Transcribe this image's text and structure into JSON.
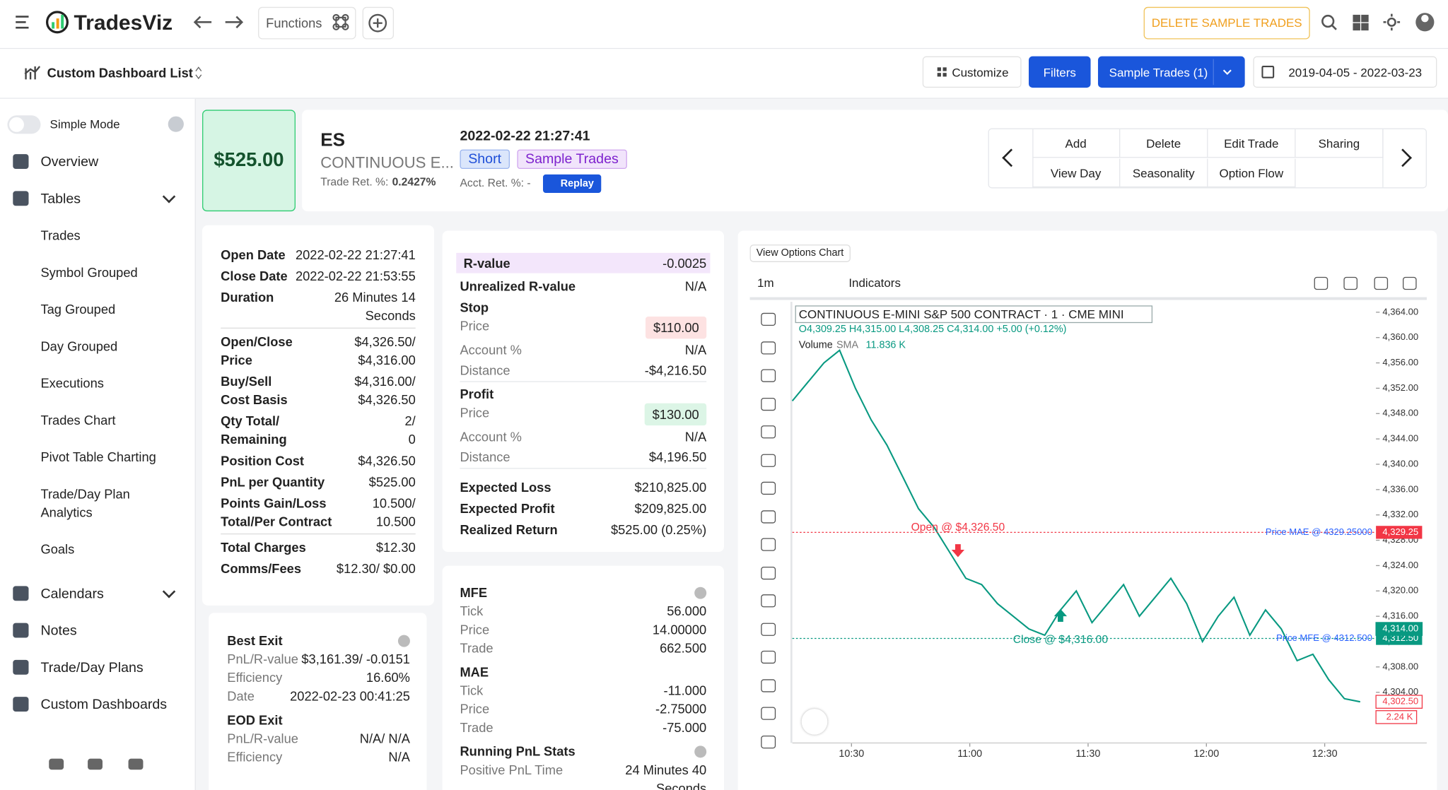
{
  "header": {
    "brand": "TradesViz",
    "functions": "Functions",
    "delete_sample": "DELETE SAMPLE TRADES"
  },
  "toolbar": {
    "dashboard": "Custom Dashboard List",
    "customize": "Customize",
    "filters": "Filters",
    "sample_trades": "Sample Trades (1)",
    "date_range": "2019-04-05 - 2022-03-23"
  },
  "sidebar": {
    "simple_mode": "Simple Mode",
    "sections": [
      {
        "label": "Overview"
      },
      {
        "label": "Tables",
        "children": [
          "Trades",
          "Symbol Grouped",
          "Tag Grouped",
          "Day Grouped",
          "Executions",
          "Trades Chart",
          "Pivot Table Charting",
          "Trade/Day Plan Analytics",
          "Goals"
        ]
      },
      {
        "label": "Calendars",
        "children": []
      },
      {
        "label": "Notes"
      },
      {
        "label": "Trade/Day Plans"
      },
      {
        "label": "Custom Dashboards"
      }
    ]
  },
  "trade": {
    "pnl": "$525.00",
    "symbol": "ES",
    "name": "CONTINUOUS E...",
    "trade_ret_label": "Trade Ret. %:",
    "trade_ret": "0.2427%",
    "datetime": "2022-02-22 21:27:41",
    "tags": [
      "Short",
      "Sample Trades"
    ],
    "acct_ret": "Acct. Ret. %: -",
    "replay": "Replay",
    "actions": [
      [
        "Add",
        "Delete",
        "Edit Trade",
        "Sharing"
      ],
      [
        "View Day",
        "Seasonality",
        "Option Flow"
      ]
    ]
  },
  "details": {
    "groups": [
      [
        {
          "label": "Open Date",
          "value": "2022-02-22 21:27:41"
        },
        {
          "label": "Close Date",
          "value": "2022-02-22 21:53:55"
        },
        {
          "label": "Duration",
          "value": [
            "26 Minutes 14",
            "Seconds"
          ]
        }
      ],
      [
        {
          "label": [
            "Open/Close",
            "Price"
          ],
          "value": [
            "$4,326.50/",
            "$4,316.00"
          ]
        },
        {
          "label": [
            "Buy/Sell",
            "Cost Basis"
          ],
          "value": [
            "$4,316.00/",
            "$4,326.50"
          ]
        },
        {
          "label": [
            "Qty Total/",
            "Remaining"
          ],
          "value": [
            "2/",
            "0"
          ]
        },
        {
          "label": "Position Cost",
          "value": "$4,326.50"
        },
        {
          "label": "PnL per Quantity",
          "value": "$525.00"
        },
        {
          "label": [
            "Points Gain/Loss",
            "Total/Per Contract"
          ],
          "value": [
            "10.500/",
            "10.500"
          ]
        }
      ],
      [
        {
          "label": "Total Charges",
          "value": "$12.30"
        },
        {
          "label": "Comms/Fees",
          "value": "$12.30/ $0.00"
        }
      ]
    ]
  },
  "exit": {
    "sections": [
      {
        "title": "Best Exit",
        "rows": [
          {
            "label": "PnL/R-value",
            "value": "$3,161.39/ -0.0151"
          },
          {
            "label": "Efficiency",
            "value": "16.60%"
          },
          {
            "label": "Date",
            "value": "2022-02-23 00:41:25"
          }
        ]
      },
      {
        "title": "EOD Exit",
        "rows": [
          {
            "label": "PnL/R-value",
            "value": "N/A/ N/A"
          },
          {
            "label": "Efficiency",
            "value": "N/A"
          }
        ]
      }
    ]
  },
  "risk": {
    "items": [
      {
        "label": "R-value",
        "value": "-0.0025"
      },
      {
        "label": "Unrealized R-value",
        "value": "N/A"
      },
      {
        "title": "Stop",
        "rows": [
          {
            "label": "Price",
            "value": "$110.00"
          },
          {
            "label": "Account %",
            "value": "N/A"
          },
          {
            "label": "Distance",
            "value": "-$4,216.50"
          }
        ]
      },
      {
        "title": "Profit",
        "rows": [
          {
            "label": "Price",
            "value": "$130.00"
          },
          {
            "label": "Account %",
            "value": "N/A"
          },
          {
            "label": "Distance",
            "value": "$4,196.50"
          }
        ]
      },
      {
        "label": "Expected Loss",
        "value": "$210,825.00"
      },
      {
        "label": "Expected Profit",
        "value": "$209,825.00"
      },
      {
        "label": "Realized Return",
        "value": "$525.00  (0.25%)"
      }
    ]
  },
  "excursion": {
    "sections": [
      {
        "title": "MFE",
        "rows": [
          {
            "label": "Tick",
            "value": "56.000"
          },
          {
            "label": "Price",
            "value": "14.00000"
          },
          {
            "label": "Trade",
            "value": "662.500"
          }
        ]
      },
      {
        "title": "MAE",
        "rows": [
          {
            "label": "Tick",
            "value": "-11.000"
          },
          {
            "label": "Price",
            "value": "-2.75000"
          },
          {
            "label": "Trade",
            "value": "-75.000"
          }
        ]
      },
      {
        "title": "Running PnL Stats",
        "rows": [
          {
            "label": "Positive PnL Time",
            "value": [
              "24 Minutes 40",
              "Seconds"
            ]
          }
        ]
      }
    ]
  },
  "chart_data": {
    "type": "line",
    "title": "CONTINUOUS E-MINI S&P 500 CONTRACT · 1 · CME MINI",
    "ohlc": "O4,309.25 H4,315.00 L4,308.25 C4,314.00 +5.00 (+0.12%)",
    "volume_label": "Volume",
    "volume_sma": "SMA",
    "volume_value": "11.836 K",
    "interval": "1m",
    "indicators": "Indicators",
    "view_options": "View Options Chart",
    "color": "#089981",
    "x": [
      615,
      619,
      623,
      627,
      631,
      635,
      639,
      643,
      647,
      651,
      655,
      659,
      663,
      667,
      671,
      675,
      679,
      683,
      687,
      691,
      695,
      699,
      703,
      707,
      711,
      715,
      719,
      723,
      727,
      731,
      735,
      739,
      743,
      747,
      751,
      755,
      759
    ],
    "values": [
      4350,
      4353,
      4356,
      4358,
      4352,
      4347,
      4343,
      4338,
      4333,
      4330,
      4326,
      4322,
      4321,
      4318,
      4316,
      4314,
      4313,
      4317,
      4320,
      4315,
      4318,
      4321,
      4316,
      4319,
      4322,
      4318,
      4312,
      4316,
      4319,
      4313,
      4317,
      4314,
      4309,
      4310,
      4306,
      4303,
      4302.5
    ],
    "xlim": [
      615,
      763
    ],
    "ylim": [
      4296,
      4365.5
    ],
    "xticks": [
      {
        "value": 630,
        "label": "10:30"
      },
      {
        "value": 660,
        "label": "11:00"
      },
      {
        "value": 690,
        "label": "11:30"
      },
      {
        "value": 720,
        "label": "12:00"
      },
      {
        "value": 750,
        "label": "12:30"
      }
    ],
    "yticks": [
      {
        "value": 4364,
        "label": "4,364.00"
      },
      {
        "value": 4360,
        "label": "4,360.00"
      },
      {
        "value": 4356,
        "label": "4,356.00"
      },
      {
        "value": 4352,
        "label": "4,352.00"
      },
      {
        "value": 4348,
        "label": "4,348.00"
      },
      {
        "value": 4344,
        "label": "4,344.00"
      },
      {
        "value": 4340,
        "label": "4,340.00"
      },
      {
        "value": 4336,
        "label": "4,336.00"
      },
      {
        "value": 4332,
        "label": "4,332.00"
      },
      {
        "value": 4328,
        "label": "4,328.00"
      },
      {
        "value": 4324,
        "label": "4,324.00"
      },
      {
        "value": 4320,
        "label": "4,320.00"
      },
      {
        "value": 4316,
        "label": "4,316.00"
      },
      {
        "value": 4312,
        "label": "4,312.00"
      },
      {
        "value": 4308,
        "label": "4,308.00"
      },
      {
        "value": 4304,
        "label": "4,304.00"
      }
    ],
    "price_lines": [
      {
        "label": "Price MAE @ 4329.25000",
        "value": 4329.25,
        "value_label": "4,329.25",
        "color": "#f23645"
      },
      {
        "label": "Price MFE @ 4312.500",
        "value": 4312.5,
        "value_label": "4,312.50",
        "color": "#089981"
      }
    ],
    "markers": [
      {
        "label": "Open @ $4,326.50",
        "x": 657,
        "value": 4326.5,
        "color": "#f23645"
      },
      {
        "label": "Close @ $4,316.00",
        "x": 683,
        "value": 4316,
        "color": "#089981"
      }
    ],
    "price_tags": [
      {
        "value": 4314,
        "value_label": "4,314.00",
        "color": "#089981"
      },
      {
        "value": 4302.5,
        "value_label": "4,302.50",
        "color": "#f23645"
      }
    ],
    "volume_tag": "2.24 K"
  }
}
